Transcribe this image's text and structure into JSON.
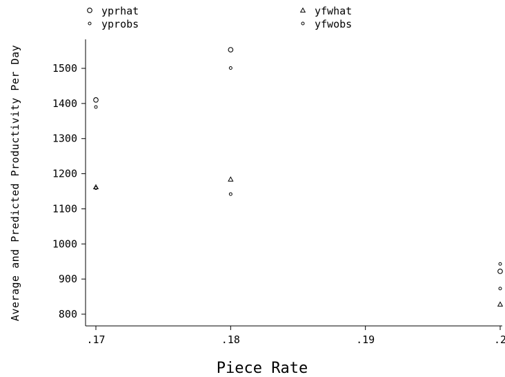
{
  "chart_data": {
    "type": "scatter",
    "title": "",
    "xlabel": "Piece Rate",
    "ylabel": "Average and Predicted Productivity Per Day",
    "xlim": [
      0.17,
      0.2
    ],
    "ylim": [
      770,
      1580
    ],
    "x_ticks": [
      {
        "value": 0.17,
        "label": ".17"
      },
      {
        "value": 0.18,
        "label": ".18"
      },
      {
        "value": 0.19,
        "label": ".19"
      },
      {
        "value": 0.2,
        "label": ".2"
      }
    ],
    "y_ticks": [
      {
        "value": 800,
        "label": "800"
      },
      {
        "value": 900,
        "label": "900"
      },
      {
        "value": 1000,
        "label": "1000"
      },
      {
        "value": 1100,
        "label": "1100"
      },
      {
        "value": 1200,
        "label": "1200"
      },
      {
        "value": 1300,
        "label": "1300"
      },
      {
        "value": 1400,
        "label": "1400"
      },
      {
        "value": 1500,
        "label": "1500"
      }
    ],
    "grid": false,
    "legend_position": "top",
    "series": [
      {
        "name": "yprhat",
        "marker": "large-circle",
        "points": [
          [
            0.17,
            1410
          ],
          [
            0.18,
            1553
          ],
          [
            0.2,
            922
          ]
        ]
      },
      {
        "name": "yprobs",
        "marker": "small-circle",
        "points": [
          [
            0.17,
            1390
          ],
          [
            0.18,
            1501
          ],
          [
            0.2,
            943
          ]
        ]
      },
      {
        "name": "yfwhat",
        "marker": "triangle",
        "points": [
          [
            0.17,
            1162
          ],
          [
            0.18,
            1184
          ],
          [
            0.2,
            828
          ]
        ]
      },
      {
        "name": "yfwobs",
        "marker": "small-circle",
        "points": [
          [
            0.17,
            1159
          ],
          [
            0.18,
            1142
          ],
          [
            0.2,
            873
          ]
        ]
      }
    ]
  }
}
